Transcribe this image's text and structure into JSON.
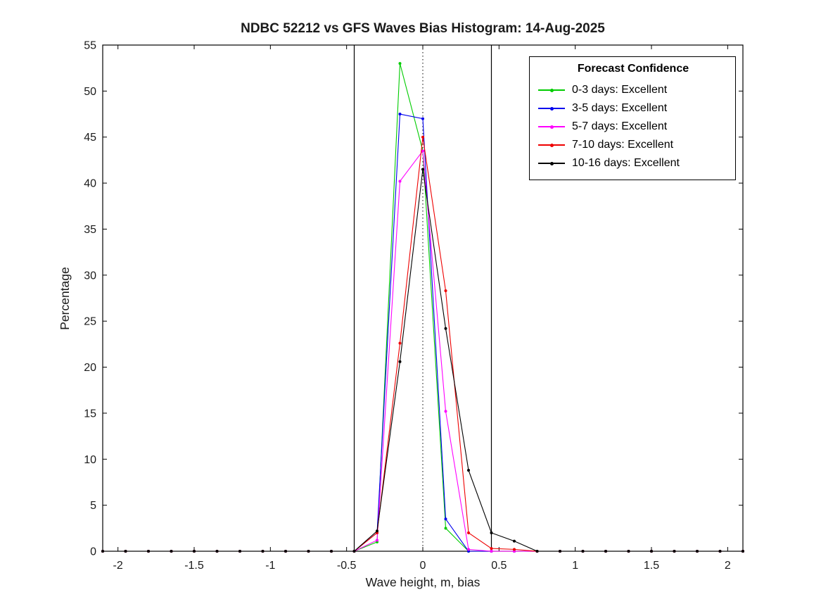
{
  "figure": {
    "background": "#ffffff",
    "text_color": "#1a1a1a"
  },
  "chart_data": {
    "type": "line",
    "title": "NDBC 52212 vs GFS Waves Bias Histogram: 14-Aug-2025",
    "xlabel": "Wave height, m, bias",
    "ylabel": "Percentage",
    "xlim": [
      -2.1,
      2.1
    ],
    "ylim": [
      0,
      55
    ],
    "xticks": [
      -2,
      -1.5,
      -1,
      -0.5,
      0,
      0.5,
      1,
      1.5,
      2
    ],
    "xtick_labels": [
      "-2",
      "-1.5",
      "-1",
      "-0.5",
      "0",
      "0.5",
      "1",
      "1.5",
      "2"
    ],
    "yticks": [
      0,
      5,
      10,
      15,
      20,
      25,
      30,
      35,
      40,
      45,
      50,
      55
    ],
    "ytick_labels": [
      "0",
      "5",
      "10",
      "15",
      "20",
      "25",
      "30",
      "35",
      "40",
      "45",
      "50",
      "55"
    ],
    "grid": false,
    "marker": "point",
    "reference_lines": {
      "solid_vertical_x": [
        -0.45,
        0.45
      ],
      "dotted_vertical_x": [
        0
      ]
    },
    "legend": {
      "title": "Forecast Confidence",
      "position": "top-right"
    },
    "x": [
      -2.1,
      -1.95,
      -1.8,
      -1.65,
      -1.5,
      -1.35,
      -1.2,
      -1.05,
      -0.9,
      -0.75,
      -0.6,
      -0.45,
      -0.3,
      -0.15,
      0,
      0.15,
      0.3,
      0.45,
      0.6,
      0.75,
      0.9,
      1.05,
      1.2,
      1.35,
      1.5,
      1.65,
      1.8,
      1.95,
      2.1
    ],
    "series": [
      {
        "name": "0-3 days: Excellent",
        "color": "#00cc00",
        "values": [
          0,
          0,
          0,
          0,
          0,
          0,
          0,
          0,
          0,
          0,
          0,
          0,
          1.0,
          53.0,
          43.5,
          2.5,
          0,
          0,
          0,
          0,
          0,
          0,
          0,
          0,
          0,
          0,
          0,
          0,
          0
        ]
      },
      {
        "name": "3-5 days: Excellent",
        "color": "#0000ee",
        "values": [
          0,
          0,
          0,
          0,
          0,
          0,
          0,
          0,
          0,
          0,
          0,
          0,
          2.0,
          47.5,
          47.0,
          3.5,
          0,
          0,
          0,
          0,
          0,
          0,
          0,
          0,
          0,
          0,
          0,
          0,
          0
        ]
      },
      {
        "name": "5-7 days: Excellent",
        "color": "#ff00ff",
        "values": [
          0,
          0,
          0,
          0,
          0,
          0,
          0,
          0,
          0,
          0,
          0,
          0,
          1.2,
          40.2,
          43.5,
          15.2,
          0.2,
          0,
          0,
          0,
          0,
          0,
          0,
          0,
          0,
          0,
          0,
          0,
          0
        ]
      },
      {
        "name": "7-10 days: Excellent",
        "color": "#ee0000",
        "values": [
          0,
          0,
          0,
          0,
          0,
          0,
          0,
          0,
          0,
          0,
          0,
          0,
          2.0,
          22.6,
          45.0,
          28.3,
          2.0,
          0.3,
          0.2,
          0,
          0,
          0,
          0,
          0,
          0,
          0,
          0,
          0,
          0
        ]
      },
      {
        "name": "10-16 days: Excellent",
        "color": "#000000",
        "values": [
          0,
          0,
          0,
          0,
          0,
          0,
          0,
          0,
          0,
          0,
          0,
          0,
          2.2,
          20.6,
          41.5,
          24.2,
          8.8,
          2.0,
          1.1,
          0,
          0,
          0,
          0,
          0,
          0,
          0,
          0,
          0,
          0
        ]
      }
    ]
  }
}
